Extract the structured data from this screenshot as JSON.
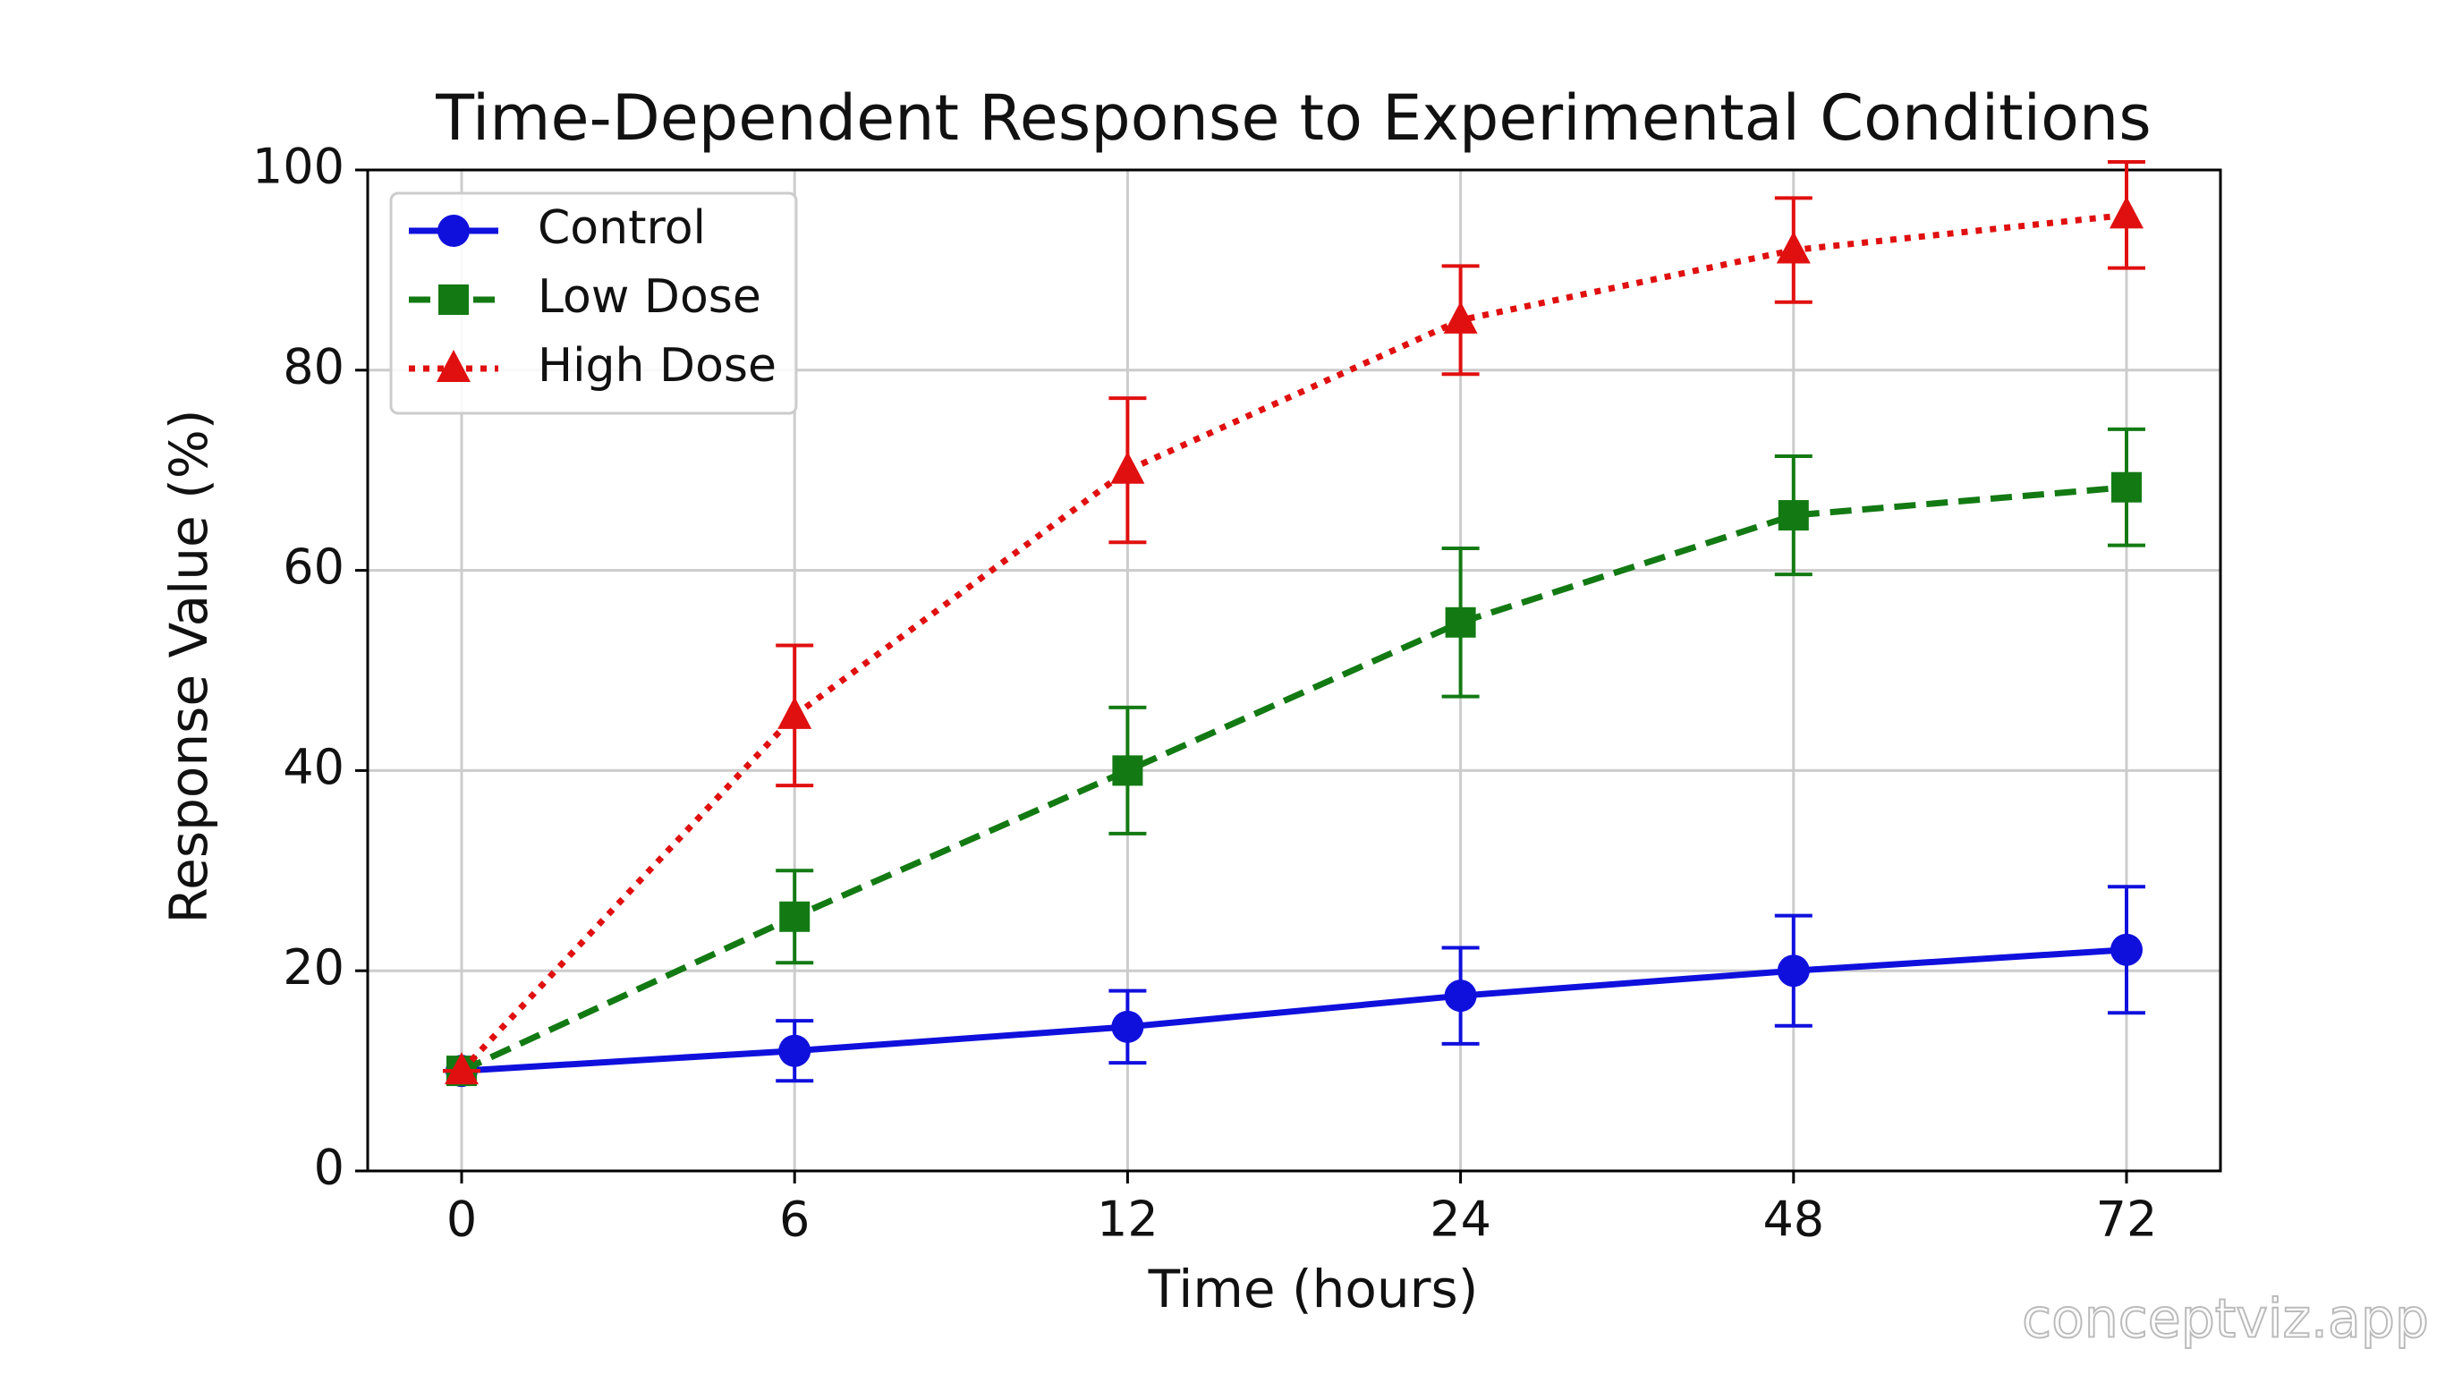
{
  "chart_data": {
    "type": "line",
    "title": "Time-Dependent Response to Experimental Conditions",
    "xlabel": "Time (hours)",
    "ylabel": "Response Value (%)",
    "categories": [
      "0",
      "6",
      "12",
      "24",
      "48",
      "72"
    ],
    "ylim": [
      0,
      100
    ],
    "yticks": [
      0,
      20,
      40,
      60,
      80,
      100
    ],
    "grid": true,
    "legend": "upper left",
    "series": [
      {
        "name": "Control",
        "color": "#1010dd",
        "marker": "circle",
        "linestyle": "solid",
        "values": [
          10,
          12,
          14.4,
          17.5,
          20,
          22.1
        ],
        "errors": [
          0,
          3,
          3.6,
          4.8,
          5.5,
          6.3
        ]
      },
      {
        "name": "Low Dose",
        "color": "#137a13",
        "marker": "square",
        "linestyle": "dashed",
        "values": [
          10,
          25.4,
          40,
          54.8,
          65.5,
          68.3
        ],
        "errors": [
          0,
          4.6,
          6.3,
          7.4,
          5.9,
          5.8
        ]
      },
      {
        "name": "High Dose",
        "color": "#e01010",
        "marker": "triangle",
        "linestyle": "dotted",
        "values": [
          10,
          45.5,
          70,
          85,
          92,
          95.5
        ],
        "errors": [
          0,
          7,
          7.2,
          5.4,
          5.2,
          5.3
        ]
      }
    ],
    "watermark": "conceptviz.app"
  }
}
